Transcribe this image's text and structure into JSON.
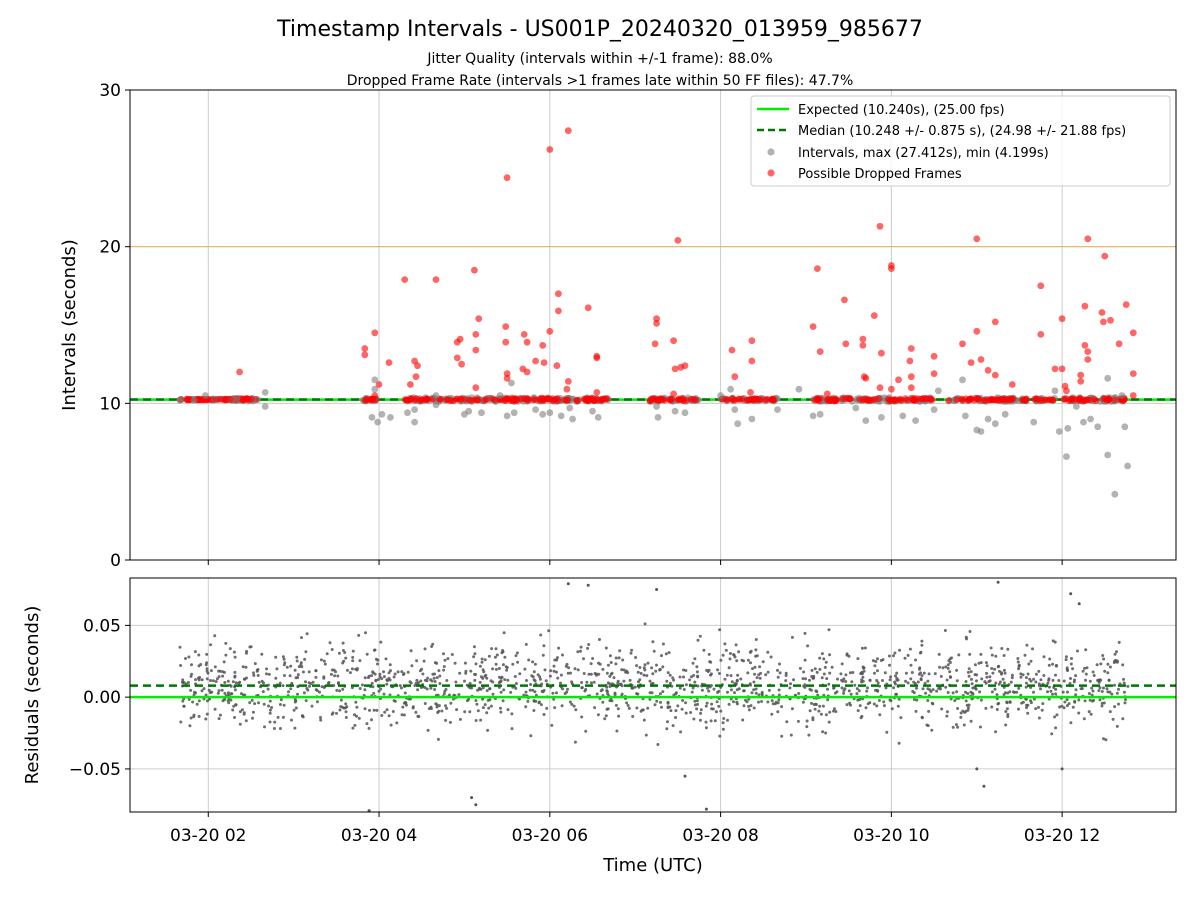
{
  "figure": {
    "title": "Timestamp Intervals - US001P_20240320_013959_985677",
    "subtitle_line1": "Jitter Quality (intervals within +/-1 frame): 88.0%",
    "subtitle_line2": "Dropped Frame Rate (intervals >1 frames late within 50 FF files): 47.7%"
  },
  "colors": {
    "expected": "#00ee00",
    "median": "#007700",
    "intervals": "#808080",
    "dropped": "#ff0000",
    "threshold": "#ffa500",
    "grid": "#cccccc",
    "residuals": "#555555"
  },
  "chart_data": [
    {
      "type": "scatter",
      "panel": "intervals",
      "ylabel": "Intervals (seconds)",
      "ylim": [
        0,
        30
      ],
      "yticks": [
        0,
        10,
        20,
        30
      ],
      "grid": true,
      "legend_position": "top-right",
      "reference_lines": {
        "expected": 10.24,
        "median": 10.248,
        "upper_threshold": 20.0
      },
      "legend": [
        {
          "label": "Expected (10.240s), (25.00 fps)",
          "kind": "line",
          "color_key": "expected"
        },
        {
          "label": "Median (10.248 +/- 0.875 s), (24.98 +/- 21.88 fps)",
          "kind": "dashed",
          "color_key": "median"
        },
        {
          "label": "Intervals, max (27.412s), min (4.199s)",
          "kind": "marker",
          "color_key": "intervals"
        },
        {
          "label": "Possible Dropped Frames",
          "kind": "marker",
          "color_key": "dropped"
        }
      ],
      "series": [
        {
          "name": "Intervals, max (27.412s), min (4.199s)",
          "points": [
            [
              "03-20 01:40",
              10.2
            ],
            [
              "03-20 01:50",
              10.2
            ],
            [
              "03-20 01:58",
              10.5
            ],
            [
              "03-20 02:20",
              10.3
            ],
            [
              "03-20 02:40",
              10.7
            ],
            [
              "03-20 02:40",
              9.8
            ],
            [
              "03-20 03:55",
              9.1
            ],
            [
              "03-20 03:57",
              10.9
            ],
            [
              "03-20 03:57",
              11.5
            ],
            [
              "03-20 03:59",
              8.8
            ],
            [
              "03-20 04:02",
              9.3
            ],
            [
              "03-20 04:08",
              9.1
            ],
            [
              "03-20 04:20",
              9.4
            ],
            [
              "03-20 04:25",
              8.8
            ],
            [
              "03-20 04:25",
              9.6
            ],
            [
              "03-20 04:40",
              10.5
            ],
            [
              "03-20 04:40",
              9.9
            ],
            [
              "03-20 05:00",
              9.3
            ],
            [
              "03-20 05:03",
              9.5
            ],
            [
              "03-20 05:12",
              9.4
            ],
            [
              "03-20 05:25",
              10.5
            ],
            [
              "03-20 05:30",
              9.2
            ],
            [
              "03-20 05:33",
              11.3
            ],
            [
              "03-20 05:35",
              9.4
            ],
            [
              "03-20 05:50",
              9.6
            ],
            [
              "03-20 05:55",
              9.3
            ],
            [
              "03-20 06:00",
              9.4
            ],
            [
              "03-20 06:08",
              9.2
            ],
            [
              "03-20 06:14",
              9.7
            ],
            [
              "03-20 06:16",
              9.0
            ],
            [
              "03-20 06:30",
              9.5
            ],
            [
              "03-20 06:34",
              9.1
            ],
            [
              "03-20 07:15",
              9.8
            ],
            [
              "03-20 07:16",
              9.1
            ],
            [
              "03-20 07:28",
              9.5
            ],
            [
              "03-20 07:35",
              9.4
            ],
            [
              "03-20 08:00",
              10.5
            ],
            [
              "03-20 08:07",
              10.9
            ],
            [
              "03-20 08:10",
              9.6
            ],
            [
              "03-20 08:12",
              8.7
            ],
            [
              "03-20 08:22",
              9.0
            ],
            [
              "03-20 08:40",
              9.6
            ],
            [
              "03-20 08:55",
              10.9
            ],
            [
              "03-20 09:05",
              9.2
            ],
            [
              "03-20 09:10",
              9.3
            ],
            [
              "03-20 09:35",
              9.7
            ],
            [
              "03-20 09:42",
              8.9
            ],
            [
              "03-20 09:53",
              9.1
            ],
            [
              "03-20 10:08",
              9.2
            ],
            [
              "03-20 10:17",
              8.9
            ],
            [
              "03-20 10:30",
              9.6
            ],
            [
              "03-20 10:33",
              10.8
            ],
            [
              "03-20 10:50",
              11.5
            ],
            [
              "03-20 10:52",
              9.2
            ],
            [
              "03-20 11:00",
              8.3
            ],
            [
              "03-20 11:03",
              8.2
            ],
            [
              "03-20 11:08",
              9.0
            ],
            [
              "03-20 11:13",
              8.7
            ],
            [
              "03-20 11:20",
              9.3
            ],
            [
              "03-20 11:40",
              8.8
            ],
            [
              "03-20 11:55",
              10.8
            ],
            [
              "03-20 11:58",
              8.2
            ],
            [
              "03-20 12:03",
              6.6
            ],
            [
              "03-20 12:04",
              8.4
            ],
            [
              "03-20 12:10",
              9.8
            ],
            [
              "03-20 12:15",
              8.8
            ],
            [
              "03-20 12:20",
              9.0
            ],
            [
              "03-20 12:25",
              8.5
            ],
            [
              "03-20 12:32",
              11.6
            ],
            [
              "03-20 12:32",
              6.7
            ],
            [
              "03-20 12:37",
              4.2
            ],
            [
              "03-20 12:42",
              10.5
            ],
            [
              "03-20 12:44",
              8.5
            ],
            [
              "03-20 12:46",
              6.0
            ]
          ]
        },
        {
          "name": "Possible Dropped Frames",
          "points": [
            [
              "03-20 02:22",
              12.0
            ],
            [
              "03-20 03:50",
              13.5
            ],
            [
              "03-20 03:50",
              13.1
            ],
            [
              "03-20 03:57",
              14.5
            ],
            [
              "03-20 03:57",
              10.5
            ],
            [
              "03-20 04:00",
              11.2
            ],
            [
              "03-20 04:07",
              12.6
            ],
            [
              "03-20 04:18",
              17.9
            ],
            [
              "03-20 04:22",
              11.2
            ],
            [
              "03-20 04:25",
              12.7
            ],
            [
              "03-20 04:27",
              12.4
            ],
            [
              "03-20 04:26",
              11.7
            ],
            [
              "03-20 04:40",
              17.9
            ],
            [
              "03-20 04:55",
              12.9
            ],
            [
              "03-20 04:55",
              13.9
            ],
            [
              "03-20 04:57",
              14.1
            ],
            [
              "03-20 04:58",
              12.5
            ],
            [
              "03-20 05:07",
              18.5
            ],
            [
              "03-20 05:08",
              13.4
            ],
            [
              "03-20 05:08",
              14.4
            ],
            [
              "03-20 05:10",
              15.4
            ],
            [
              "03-20 05:08",
              11.0
            ],
            [
              "03-20 05:30",
              24.4
            ],
            [
              "03-20 05:29",
              14.9
            ],
            [
              "03-20 05:29",
              13.9
            ],
            [
              "03-20 05:30",
              11.9
            ],
            [
              "03-20 05:30",
              11.6
            ],
            [
              "03-20 05:42",
              14.4
            ],
            [
              "03-20 05:41",
              12.2
            ],
            [
              "03-20 05:44",
              13.9
            ],
            [
              "03-20 05:44",
              12.0
            ],
            [
              "03-20 05:50",
              12.7
            ],
            [
              "03-20 05:55",
              13.7
            ],
            [
              "03-20 05:56",
              12.6
            ],
            [
              "03-20 06:00",
              26.2
            ],
            [
              "03-20 06:00",
              14.6
            ],
            [
              "03-20 06:05",
              12.4
            ],
            [
              "03-20 06:06",
              17.0
            ],
            [
              "03-20 06:06",
              15.9
            ],
            [
              "03-20 06:13",
              27.4
            ],
            [
              "03-20 06:13",
              11.4
            ],
            [
              "03-20 06:12",
              10.9
            ],
            [
              "03-20 06:27",
              16.1
            ],
            [
              "03-20 06:33",
              13.0
            ],
            [
              "03-20 06:33",
              12.9
            ],
            [
              "03-20 06:33",
              10.7
            ],
            [
              "03-20 07:15",
              15.4
            ],
            [
              "03-20 07:15",
              15.1
            ],
            [
              "03-20 07:14",
              13.8
            ],
            [
              "03-20 07:27",
              14.0
            ],
            [
              "03-20 07:28",
              12.2
            ],
            [
              "03-20 07:30",
              20.4
            ],
            [
              "03-20 07:32",
              12.3
            ],
            [
              "03-20 07:35",
              12.4
            ],
            [
              "03-20 07:27",
              10.6
            ],
            [
              "03-20 08:08",
              13.4
            ],
            [
              "03-20 08:10",
              11.7
            ],
            [
              "03-20 08:22",
              14.0
            ],
            [
              "03-20 08:22",
              12.7
            ],
            [
              "03-20 08:21",
              10.7
            ],
            [
              "03-20 09:05",
              14.9
            ],
            [
              "03-20 09:08",
              18.6
            ],
            [
              "03-20 09:10",
              13.3
            ],
            [
              "03-20 09:15",
              10.6
            ],
            [
              "03-20 09:27",
              16.6
            ],
            [
              "03-20 09:28",
              13.8
            ],
            [
              "03-20 09:40",
              14.1
            ],
            [
              "03-20 09:40",
              13.7
            ],
            [
              "03-20 09:41",
              11.7
            ],
            [
              "03-20 09:42",
              11.6
            ],
            [
              "03-20 09:48",
              15.6
            ],
            [
              "03-20 09:52",
              21.3
            ],
            [
              "03-20 09:53",
              13.2
            ],
            [
              "03-20 09:52",
              11.0
            ],
            [
              "03-20 10:00",
              10.9
            ],
            [
              "03-20 10:00",
              18.8
            ],
            [
              "03-20 10:00",
              18.6
            ],
            [
              "03-20 10:05",
              11.5
            ],
            [
              "03-20 10:14",
              13.5
            ],
            [
              "03-20 10:13",
              12.7
            ],
            [
              "03-20 10:14",
              11.7
            ],
            [
              "03-20 10:14",
              11.0
            ],
            [
              "03-20 10:30",
              13.0
            ],
            [
              "03-20 10:30",
              11.9
            ],
            [
              "03-20 10:50",
              13.8
            ],
            [
              "03-20 10:56",
              12.6
            ],
            [
              "03-20 11:00",
              20.5
            ],
            [
              "03-20 11:00",
              14.6
            ],
            [
              "03-20 11:03",
              12.8
            ],
            [
              "03-20 11:08",
              12.1
            ],
            [
              "03-20 11:13",
              15.2
            ],
            [
              "03-20 11:13",
              11.8
            ],
            [
              "03-20 11:25",
              11.2
            ],
            [
              "03-20 11:45",
              17.5
            ],
            [
              "03-20 11:45",
              14.4
            ],
            [
              "03-20 11:55",
              12.2
            ],
            [
              "03-20 12:00",
              15.4
            ],
            [
              "03-20 12:00",
              12.2
            ],
            [
              "03-20 12:02",
              11.1
            ],
            [
              "03-20 12:03",
              10.8
            ],
            [
              "03-20 12:13",
              11.8
            ],
            [
              "03-20 12:13",
              11.4
            ],
            [
              "03-20 12:16",
              16.2
            ],
            [
              "03-20 12:16",
              13.7
            ],
            [
              "03-20 12:18",
              13.3
            ],
            [
              "03-20 12:18",
              12.8
            ],
            [
              "03-20 12:18",
              20.5
            ],
            [
              "03-20 12:28",
              15.8
            ],
            [
              "03-20 12:29",
              15.2
            ],
            [
              "03-20 12:30",
              19.4
            ],
            [
              "03-20 12:34",
              15.3
            ],
            [
              "03-20 12:40",
              13.8
            ],
            [
              "03-20 12:45",
              16.3
            ],
            [
              "03-20 12:50",
              11.9
            ],
            [
              "03-20 12:50",
              14.5
            ],
            [
              "03-20 12:50",
              10.5
            ]
          ]
        }
      ],
      "baseline_clusters": [
        [
          "03-20 01:40",
          "03-20 02:35",
          10.24,
          0.08
        ],
        [
          "03-20 02:15",
          "03-20 02:32",
          10.24,
          0.2
        ],
        [
          "03-20 03:48",
          "03-20 04:00",
          10.24,
          0.2
        ],
        [
          "03-20 04:18",
          "03-20 06:42",
          10.24,
          0.25
        ],
        [
          "03-20 07:10",
          "03-20 07:45",
          10.24,
          0.25
        ],
        [
          "03-20 08:00",
          "03-20 08:40",
          10.24,
          0.2
        ],
        [
          "03-20 09:05",
          "03-20 10:30",
          10.24,
          0.25
        ],
        [
          "03-20 10:40",
          "03-20 11:35",
          10.24,
          0.25
        ],
        [
          "03-20 11:40",
          "03-20 11:55",
          10.24,
          0.2
        ],
        [
          "03-20 12:00",
          "03-20 12:45",
          10.24,
          0.25
        ]
      ]
    },
    {
      "type": "scatter",
      "panel": "residuals",
      "ylabel": "Residuals (seconds)",
      "xlabel": "Time (UTC)",
      "ylim": [
        -0.08,
        0.083
      ],
      "yticks": [
        -0.05,
        0.0,
        0.05
      ],
      "ytick_labels": [
        "−0.05",
        "0.00",
        "0.05"
      ],
      "grid": true,
      "reference_lines": {
        "expected": 0.0,
        "median": 0.008
      },
      "residual_distribution": {
        "x_start": "03-20 01:40",
        "x_end": "03-20 12:47",
        "center": 0.008,
        "stddev": 0.02,
        "count": 1700
      },
      "notable_outliers": [
        [
          "03-20 05:08",
          -0.075
        ],
        [
          "03-20 05:05",
          -0.07
        ],
        [
          "03-20 03:53",
          -0.079
        ],
        [
          "03-20 06:13",
          0.079
        ],
        [
          "03-20 06:27",
          0.078
        ],
        [
          "03-20 07:15",
          0.075
        ],
        [
          "03-20 07:35",
          -0.055
        ],
        [
          "03-20 07:50",
          -0.078
        ],
        [
          "03-20 11:05",
          -0.062
        ],
        [
          "03-20 11:00",
          -0.05
        ],
        [
          "03-20 12:00",
          -0.05
        ],
        [
          "03-20 11:15",
          0.08
        ],
        [
          "03-20 12:06",
          0.072
        ],
        [
          "03-20 12:12",
          0.065
        ]
      ]
    }
  ],
  "x_axis": {
    "range": [
      "03-20 01:05",
      "03-20 13:20"
    ],
    "ticks": [
      "03-20 02:00",
      "03-20 04:00",
      "03-20 06:00",
      "03-20 08:00",
      "03-20 10:00",
      "03-20 12:00"
    ],
    "tick_labels": [
      "03-20 02",
      "03-20 04",
      "03-20 06",
      "03-20 08",
      "03-20 10",
      "03-20 12"
    ]
  }
}
